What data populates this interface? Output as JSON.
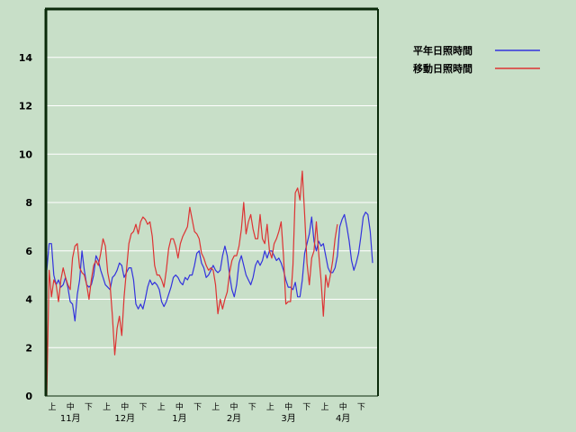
{
  "chart_data": {
    "type": "line",
    "ylim": [
      0,
      16
    ],
    "yticks": [
      0,
      2,
      4,
      6,
      8,
      10,
      12,
      14
    ],
    "grid": true,
    "legend_position": "top-right",
    "x_period_labels": [
      "上",
      "中",
      "下",
      "上",
      "中",
      "下",
      "上",
      "中",
      "下",
      "上",
      "中",
      "下",
      "上",
      "中",
      "下",
      "上",
      "中",
      "下"
    ],
    "month_labels": [
      "11月",
      "12月",
      "1月",
      "2月",
      "3月",
      "4月"
    ],
    "series": [
      {
        "name": "平年日照時間",
        "color": "#3333dd",
        "values": [
          5.2,
          6.3,
          6.3,
          5.0,
          4.6,
          4.8,
          4.5,
          4.6,
          4.9,
          4.5,
          3.9,
          3.8,
          3.1,
          4.2,
          4.8,
          6.0,
          5.2,
          4.6,
          4.5,
          4.6,
          5.0,
          5.8,
          5.6,
          5.2,
          4.9,
          4.6,
          4.5,
          4.4,
          4.9,
          5.0,
          5.2,
          5.5,
          5.4,
          4.9,
          5.1,
          5.3,
          5.3,
          4.8,
          3.8,
          3.6,
          3.8,
          3.6,
          4.0,
          4.5,
          4.8,
          4.6,
          4.7,
          4.6,
          4.4,
          3.9,
          3.7,
          3.9,
          4.2,
          4.5,
          4.9,
          5.0,
          4.9,
          4.7,
          4.6,
          4.9,
          4.8,
          5.0,
          5.0,
          5.4,
          5.9,
          6.0,
          5.5,
          5.3,
          4.9,
          5.0,
          5.2,
          5.4,
          5.2,
          5.1,
          5.2,
          5.8,
          6.2,
          5.8,
          5.0,
          4.4,
          4.1,
          4.6,
          5.5,
          5.8,
          5.4,
          5.0,
          4.8,
          4.6,
          4.9,
          5.4,
          5.6,
          5.4,
          5.6,
          6.0,
          5.7,
          6.0,
          6.0,
          5.8,
          5.6,
          5.7,
          5.5,
          5.2,
          4.8,
          4.5,
          4.5,
          4.4,
          4.7,
          4.1,
          4.1,
          4.8,
          5.9,
          6.3,
          6.7,
          7.4,
          6.4,
          6.0,
          6.4,
          6.2,
          6.3,
          5.8,
          5.3,
          5.1,
          5.1,
          5.3,
          5.8,
          7.0,
          7.3,
          7.5,
          7.0,
          6.4,
          5.6,
          5.2,
          5.5,
          5.9,
          6.6,
          7.4,
          7.6,
          7.5,
          6.8,
          5.5
        ]
      },
      {
        "name": "移動日照時間",
        "color": "#dd3333",
        "values": [
          0.0,
          5.2,
          4.1,
          4.8,
          4.6,
          3.9,
          4.8,
          5.3,
          4.9,
          4.6,
          4.4,
          5.7,
          6.2,
          6.3,
          5.3,
          5.1,
          5.0,
          4.6,
          4.0,
          4.8,
          5.4,
          5.6,
          5.4,
          5.9,
          6.5,
          6.2,
          5.1,
          4.6,
          3.3,
          1.7,
          2.8,
          3.3,
          2.5,
          4.1,
          5.2,
          6.3,
          6.7,
          6.8,
          7.1,
          6.7,
          7.2,
          7.4,
          7.3,
          7.1,
          7.2,
          6.6,
          5.4,
          5.0,
          5.0,
          4.8,
          4.5,
          5.2,
          6.1,
          6.5,
          6.5,
          6.2,
          5.7,
          6.3,
          6.6,
          6.8,
          7.0,
          7.8,
          7.3,
          6.8,
          6.7,
          6.5,
          5.9,
          5.7,
          5.4,
          5.2,
          5.3,
          5.2,
          4.6,
          3.4,
          4.0,
          3.6,
          4.0,
          4.3,
          5.1,
          5.6,
          5.8,
          5.8,
          6.2,
          6.9,
          8.0,
          6.7,
          7.2,
          7.5,
          6.9,
          6.5,
          6.5,
          7.5,
          6.5,
          6.3,
          7.1,
          6.0,
          5.7,
          6.3,
          6.5,
          6.8,
          7.2,
          5.8,
          3.8,
          3.9,
          3.9,
          5.4,
          8.4,
          8.6,
          8.1,
          9.3,
          7.5,
          5.5,
          4.6,
          5.7,
          6.0,
          7.2,
          5.9,
          4.8,
          3.3,
          5.0,
          4.5,
          5.0,
          5.6,
          6.5,
          7.1
        ]
      }
    ]
  }
}
